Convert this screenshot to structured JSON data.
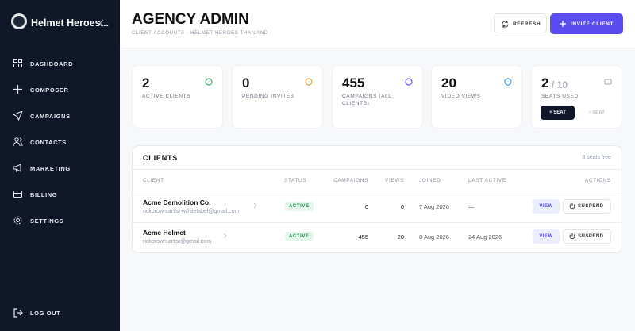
{
  "sidebar": {
    "brand": "Helmet Heroes...",
    "nav": [
      "DASHBOARD",
      "COMPOSER",
      "CAMPAIGNS",
      "CONTACTS",
      "MARKETING",
      "BILLING",
      "SETTINGS"
    ],
    "logout": "LOG OUT"
  },
  "header": {
    "title": "AGENCY ADMIN",
    "subtitle": "CLIENT ACCOUNTS · HELMET HEROES THAILAND",
    "refresh": "REFRESH",
    "invite": "INVITE CLIENT"
  },
  "stats": [
    {
      "value": 2,
      "label": "ACTIVE CLIENTS"
    },
    {
      "value": 0,
      "label": "PENDING INVITES"
    },
    {
      "value": 455,
      "label": "CAMPAIGNS (ALL CLIENTS)"
    },
    {
      "value": 20,
      "label": "VIDEO VIEWS"
    }
  ],
  "seats": {
    "used": 2,
    "total": "/ 10",
    "label": "SEATS USED",
    "add": "+ SEAT",
    "remove": "− SEAT"
  },
  "clients": {
    "title": "CLIENTS",
    "seats_free": "8 seats free",
    "columns": [
      "CLIENT",
      "STATUS",
      "CAMPAIGNS",
      "VIEWS",
      "JOINED",
      "LAST ACTIVE",
      "ACTIONS"
    ],
    "actions": [
      "VIEW",
      "SUSPEND"
    ],
    "rows": [
      {
        "name": "Acme Demolition Co.",
        "email": "rickbrown.artist+whitelabel@gmail.com",
        "status": "ACTIVE",
        "campaigns": 0,
        "views": 0,
        "joined": "7 Aug 2026",
        "last_active": "—"
      },
      {
        "name": "Acme Helmet",
        "email": "rickbrown.artist@gmail.com",
        "status": "ACTIVE",
        "campaigns": 455,
        "views": 20,
        "joined": "8 Aug 2026",
        "last_active": "24 Aug 2026"
      }
    ]
  }
}
